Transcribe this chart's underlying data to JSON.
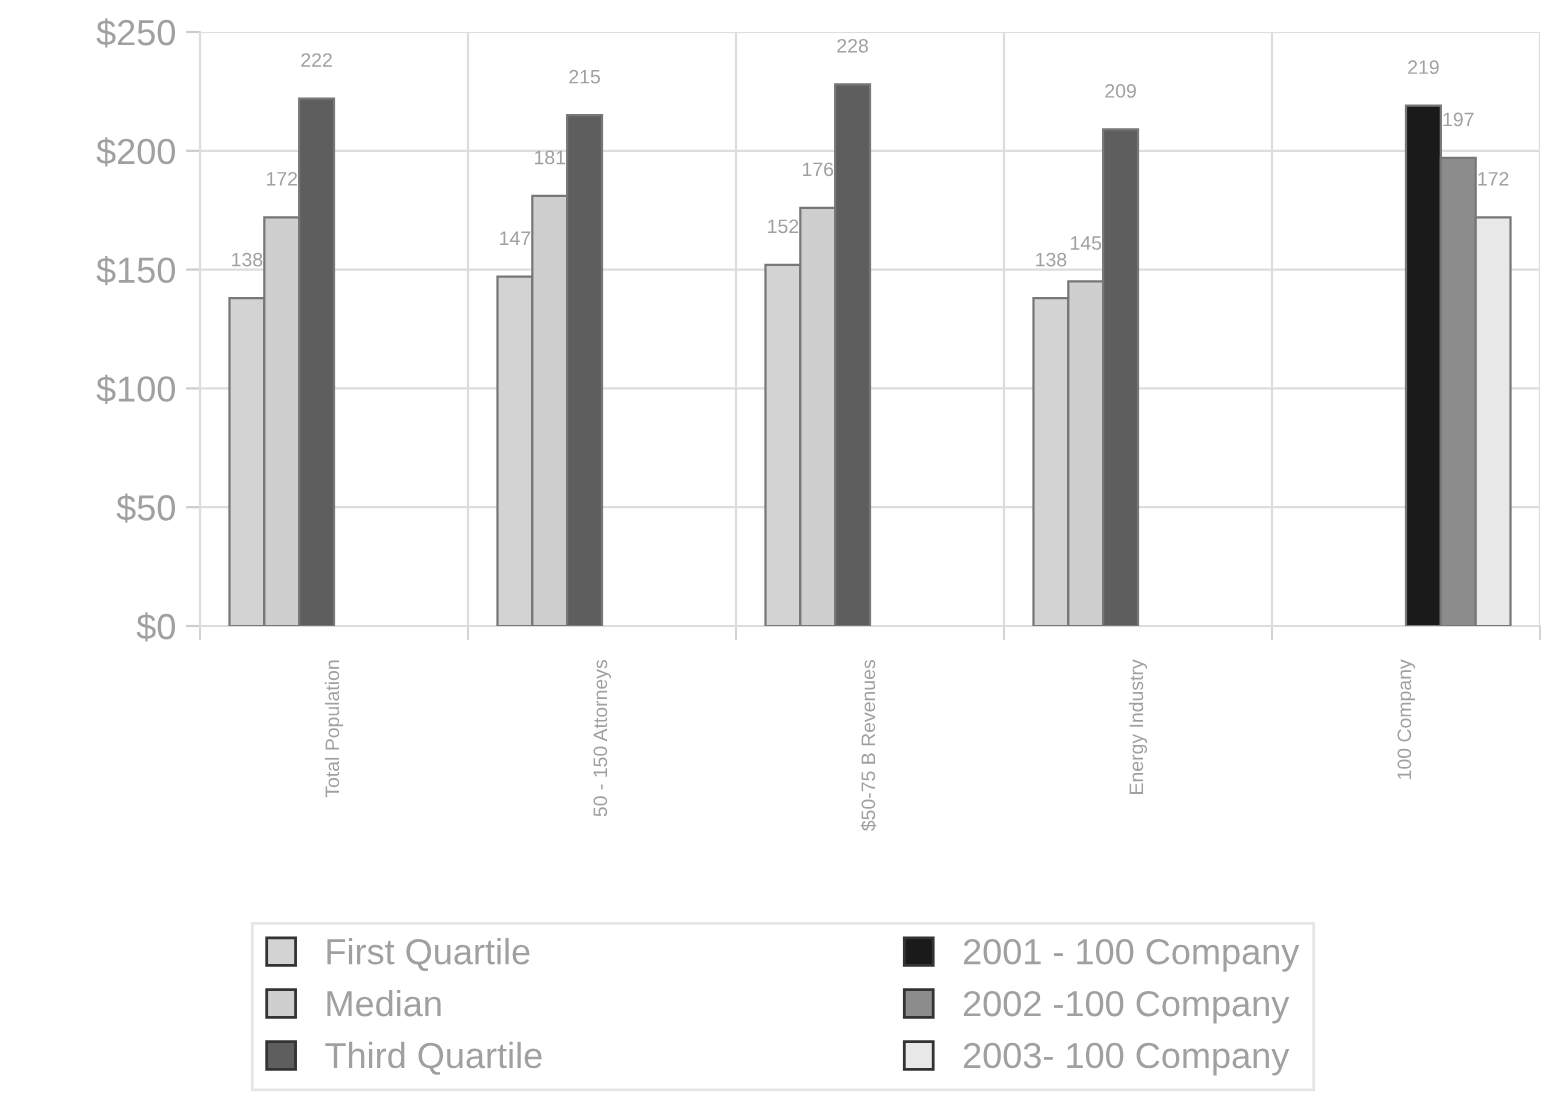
{
  "chart_data": {
    "type": "bar",
    "categories": [
      "Total Population",
      "50 - 150 Attorneys",
      "$50-75 B Revenues",
      "Energy Industry",
      "100 Company"
    ],
    "series": [
      {
        "name": "First Quartile",
        "color": "#d3d3d3",
        "values": [
          138,
          147,
          152,
          138,
          null
        ]
      },
      {
        "name": "Median",
        "color": "#cfcfcf",
        "values": [
          172,
          181,
          176,
          145,
          null
        ]
      },
      {
        "name": "Third Quartile",
        "color": "#5e5e5e",
        "values": [
          222,
          215,
          228,
          209,
          null
        ]
      },
      {
        "name": "2001 - 100 Company",
        "color": "#1a1a1a",
        "values": [
          null,
          null,
          null,
          null,
          219
        ]
      },
      {
        "name": "2002 -100 Company",
        "color": "#8c8c8c",
        "values": [
          null,
          null,
          null,
          null,
          197
        ]
      },
      {
        "name": "2003- 100 Company",
        "color": "#e8e8e8",
        "values": [
          null,
          null,
          null,
          null,
          172
        ]
      }
    ],
    "ylim": [
      0,
      250
    ],
    "yticks": [
      {
        "value": 0,
        "label": "$0"
      },
      {
        "value": 50,
        "label": "$50"
      },
      {
        "value": 100,
        "label": "$100"
      },
      {
        "value": 150,
        "label": "$150"
      },
      {
        "value": 200,
        "label": "$200"
      },
      {
        "value": 250,
        "label": "$250"
      }
    ],
    "grid": true,
    "legend": "bottom",
    "data_labels": true
  }
}
